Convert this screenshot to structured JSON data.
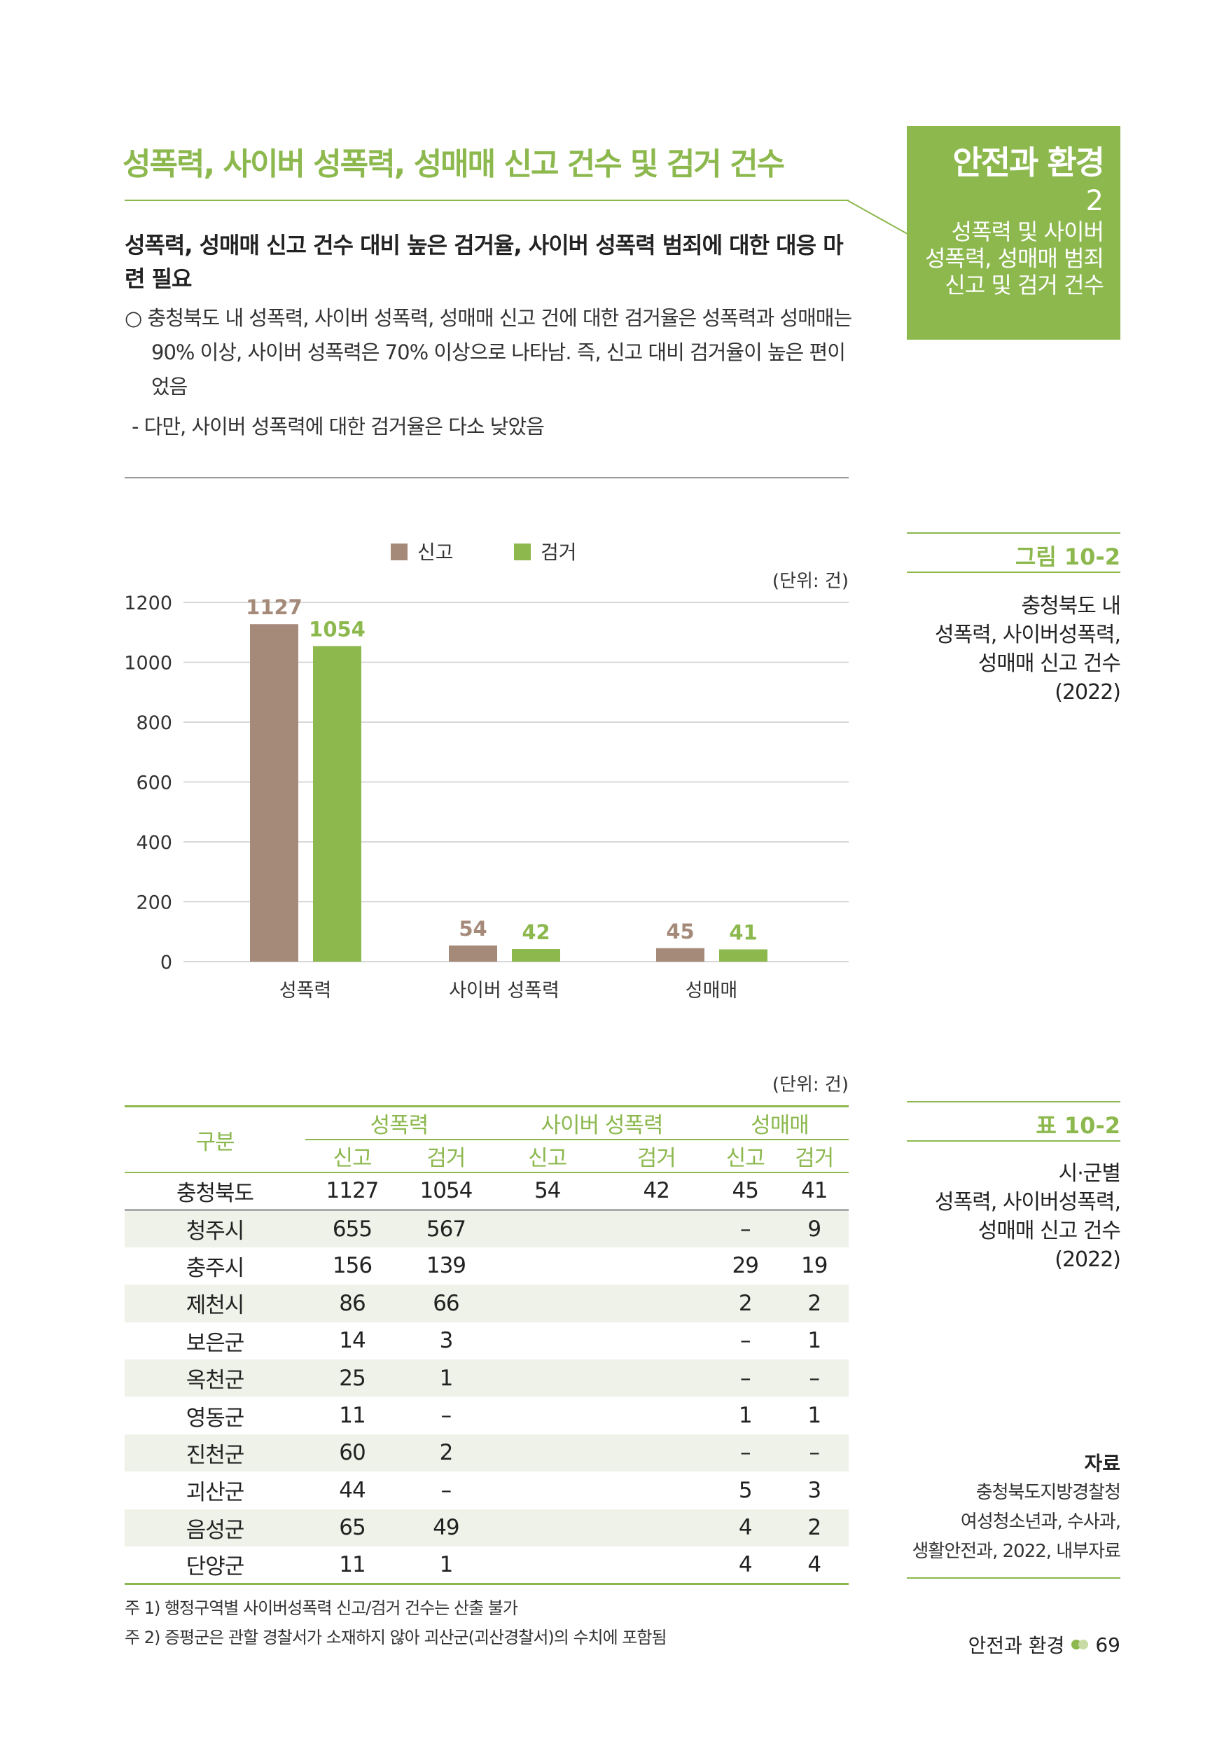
{
  "title": "성폭력, 사이버 성폭력, 성매매 신고 건수 및 검거 건수",
  "side_box": {
    "section": "안전과 환경",
    "number": "2",
    "lines": [
      "성폭력 및 사이버",
      "성폭력, 성매매 범죄",
      "신고 및 검거 건수"
    ]
  },
  "subheading": "성폭력, 성매매 신고 건수 대비 높은 검거율, 사이버 성폭력 범죄에 대한 대응 마련 필요",
  "bullet": "○ 충청북도 내 성폭력, 사이버 성폭력, 성매매 신고 건에 대한 검거율은 성폭력과 성매매는 90% 이상, 사이버 성폭력은 70% 이상으로 나타남. 즉, 신고 대비 검거율이 높은 편이었음",
  "dash": "- 다만, 사이버 성폭력에 대한 검거율은 다소 낮았음",
  "figure": {
    "label": "그림 10-2",
    "caption": [
      "충청북도 내",
      "성폭력, 사이버성폭력,",
      "성매매 신고 건수",
      "(2022)"
    ]
  },
  "chart_data": {
    "type": "bar",
    "unit": "(단위: 건)",
    "categories": [
      "성폭력",
      "사이버 성폭력",
      "성매매"
    ],
    "series": [
      {
        "name": "신고",
        "color": "#a58a7a",
        "values": [
          1127,
          54,
          45
        ]
      },
      {
        "name": "검거",
        "color": "#8cb84e",
        "values": [
          1054,
          42,
          41
        ]
      }
    ],
    "yticks": [
      "0",
      "200",
      "400",
      "600",
      "800",
      "1000",
      "1200"
    ],
    "ylim": [
      0,
      1200
    ],
    "grid": true,
    "legend": "top-center"
  },
  "table": {
    "label": "표 10-2",
    "caption": [
      "시·군별",
      "성폭력, 사이버성폭력,",
      "성매매 신고 건수",
      "(2022)"
    ],
    "unit": "(단위: 건)",
    "group_header": "구분",
    "groups": [
      "성폭력",
      "사이버 성폭력",
      "성매매"
    ],
    "sub_headers": [
      "신고",
      "검거",
      "신고",
      "검거",
      "신고",
      "검거"
    ],
    "rows": [
      [
        "충청북도",
        "1127",
        "1054",
        "54",
        "42",
        "45",
        "41"
      ],
      [
        "청주시",
        "655",
        "567",
        "",
        "",
        "–",
        "9"
      ],
      [
        "충주시",
        "156",
        "139",
        "",
        "",
        "29",
        "19"
      ],
      [
        "제천시",
        "86",
        "66",
        "",
        "",
        "2",
        "2"
      ],
      [
        "보은군",
        "14",
        "3",
        "",
        "",
        "–",
        "1"
      ],
      [
        "옥천군",
        "25",
        "1",
        "",
        "",
        "–",
        "–"
      ],
      [
        "영동군",
        "11",
        "–",
        "",
        "",
        "1",
        "1"
      ],
      [
        "진천군",
        "60",
        "2",
        "",
        "",
        "–",
        "–"
      ],
      [
        "괴산군",
        "44",
        "–",
        "",
        "",
        "5",
        "3"
      ],
      [
        "음성군",
        "65",
        "49",
        "",
        "",
        "4",
        "2"
      ],
      [
        "단양군",
        "11",
        "1",
        "",
        "",
        "4",
        "4"
      ]
    ],
    "notes": [
      "주 1) 행정구역별 사이버성폭력 신고/검거 건수는 산출 불가",
      "주 2) 증평군은 관할 경찰서가 소재하지 않아 괴산군(괴산경찰서)의 수치에 포함됨"
    ]
  },
  "source": {
    "label": "자료",
    "lines": [
      "충청북도지방경찰청",
      "여성청소년과, 수사과,",
      "생활안전과, 2022, 내부자료"
    ]
  },
  "footer": {
    "section": "안전과 환경",
    "page": "69"
  }
}
